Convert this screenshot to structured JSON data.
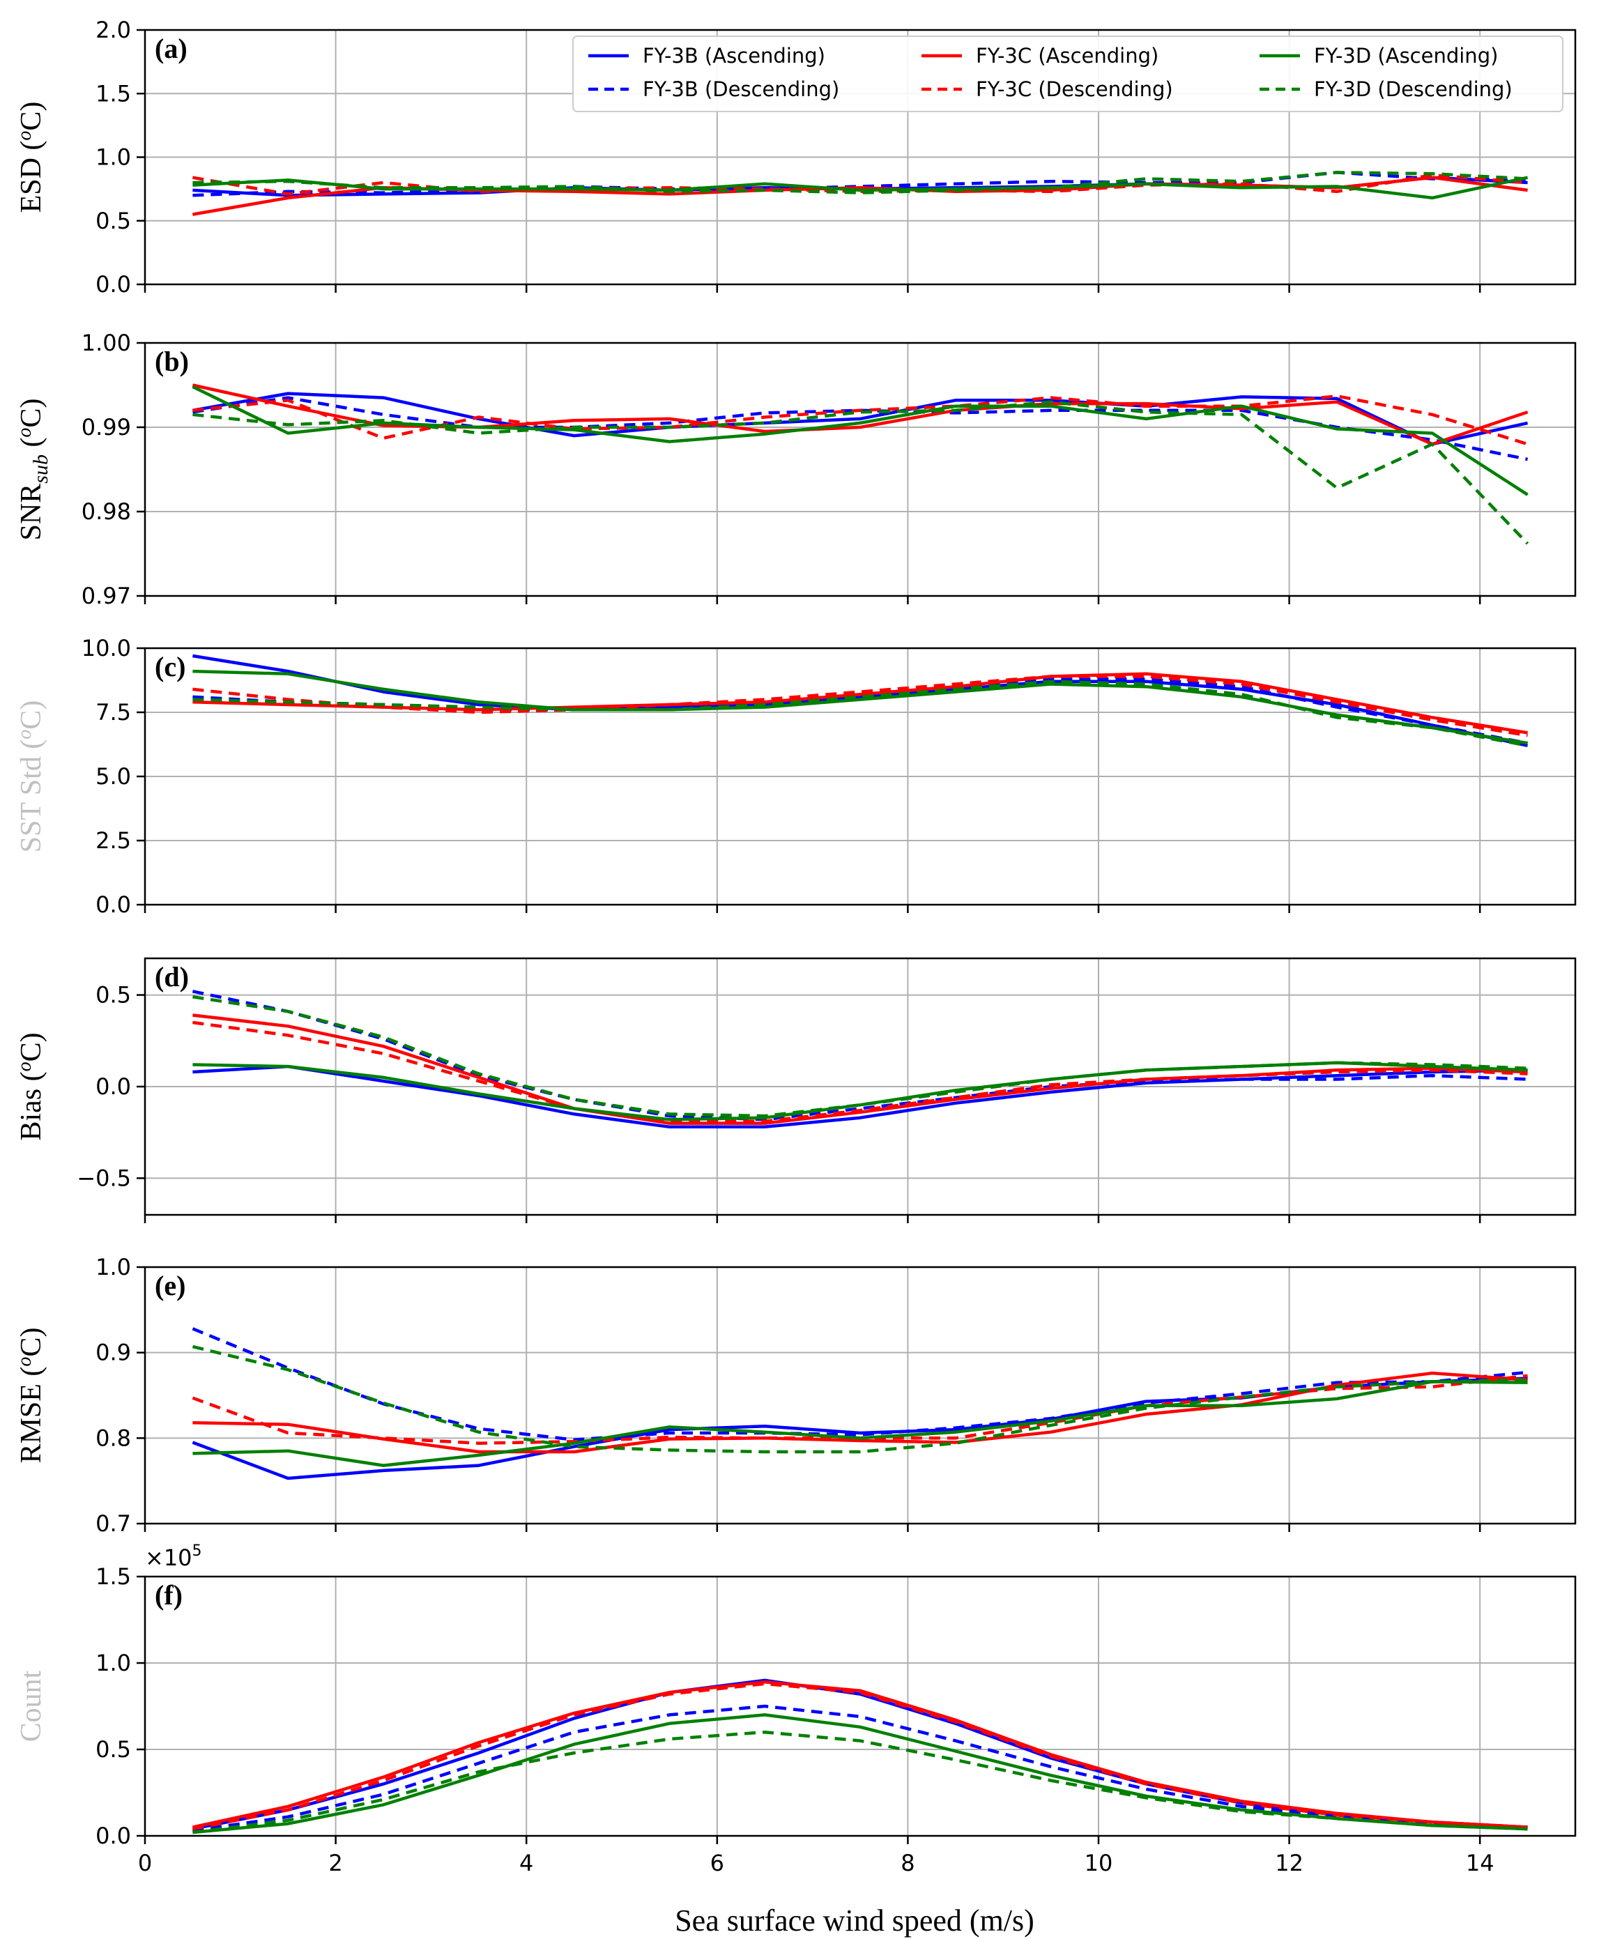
{
  "chart_data": {
    "type": "line",
    "xlabel": "Sea surface wind speed (m/s)",
    "xlim": [
      0,
      15
    ],
    "xticks": [
      0,
      2,
      4,
      6,
      8,
      10,
      12,
      14
    ],
    "x": [
      0.5,
      1.5,
      2.5,
      3.5,
      4.5,
      5.5,
      6.5,
      7.5,
      8.5,
      9.5,
      10.5,
      11.5,
      12.5,
      13.5,
      14.5
    ],
    "legend": {
      "placement": "top-right of panel (a)",
      "entries": [
        {
          "label": "FY-3B (Ascending)",
          "color": "#0000ff",
          "dash": "solid"
        },
        {
          "label": "FY-3B (Descending)",
          "color": "#0000ff",
          "dash": "dashed"
        },
        {
          "label": "FY-3C (Ascending)",
          "color": "#ff0000",
          "dash": "solid"
        },
        {
          "label": "FY-3C (Descending)",
          "color": "#ff0000",
          "dash": "dashed"
        },
        {
          "label": "FY-3D (Ascending)",
          "color": "#008000",
          "dash": "solid"
        },
        {
          "label": "FY-3D (Descending)",
          "color": "#008000",
          "dash": "dashed"
        }
      ]
    },
    "panels": [
      {
        "letter": "(a)",
        "ylabel": "ESD (°C)",
        "ylabel_color": "#000000",
        "ylim": [
          0.0,
          2.0
        ],
        "yticks": [
          0.0,
          0.5,
          1.0,
          1.5,
          2.0
        ],
        "ytick_labels": [
          "0.0",
          "0.5",
          "1.0",
          "1.5",
          "2.0"
        ],
        "series": [
          {
            "name": "FY-3B (Ascending)",
            "values": [
              0.74,
              0.7,
              0.71,
              0.72,
              0.76,
              0.74,
              0.76,
              0.75,
              0.76,
              0.77,
              0.79,
              0.78,
              0.76,
              0.84,
              0.8
            ]
          },
          {
            "name": "FY-3B (Descending)",
            "values": [
              0.7,
              0.73,
              0.72,
              0.74,
              0.77,
              0.75,
              0.75,
              0.77,
              0.79,
              0.81,
              0.8,
              0.8,
              0.88,
              0.83,
              0.82
            ]
          },
          {
            "name": "FY-3C (Ascending)",
            "values": [
              0.55,
              0.68,
              0.76,
              0.74,
              0.73,
              0.71,
              0.74,
              0.76,
              0.73,
              0.74,
              0.79,
              0.78,
              0.76,
              0.84,
              0.74
            ]
          },
          {
            "name": "FY-3C (Descending)",
            "values": [
              0.84,
              0.71,
              0.8,
              0.73,
              0.75,
              0.76,
              0.75,
              0.73,
              0.74,
              0.73,
              0.78,
              0.79,
              0.73,
              0.86,
              0.8
            ]
          },
          {
            "name": "FY-3D (Ascending)",
            "values": [
              0.78,
              0.82,
              0.75,
              0.75,
              0.75,
              0.74,
              0.79,
              0.74,
              0.75,
              0.76,
              0.79,
              0.76,
              0.77,
              0.68,
              0.84
            ]
          },
          {
            "name": "FY-3D (Descending)",
            "values": [
              0.8,
              0.81,
              0.76,
              0.76,
              0.77,
              0.73,
              0.74,
              0.72,
              0.74,
              0.76,
              0.83,
              0.81,
              0.88,
              0.87,
              0.83
            ]
          }
        ]
      },
      {
        "letter": "(b)",
        "ylabel": "SNRsub (°C)",
        "ylabel_color": "#000000",
        "ylim": [
          0.97,
          1.0
        ],
        "yticks": [
          0.97,
          0.98,
          0.99,
          1.0
        ],
        "ytick_labels": [
          "0.97",
          "0.98",
          "0.99",
          "1.00"
        ],
        "series": [
          {
            "name": "FY-3B (Ascending)",
            "values": [
              0.992,
              0.994,
              0.9935,
              0.991,
              0.989,
              0.99,
              0.9905,
              0.991,
              0.9932,
              0.9932,
              0.9925,
              0.9936,
              0.9934,
              0.988,
              0.9905
            ]
          },
          {
            "name": "FY-3B (Descending)",
            "values": [
              0.9918,
              0.9935,
              0.9915,
              0.99,
              0.99,
              0.9905,
              0.9917,
              0.992,
              0.9917,
              0.992,
              0.992,
              0.992,
              0.99,
              0.9885,
              0.9862
            ]
          },
          {
            "name": "FY-3C (Ascending)",
            "values": [
              0.995,
              0.9925,
              0.9902,
              0.99,
              0.9908,
              0.991,
              0.9895,
              0.99,
              0.992,
              0.9928,
              0.9928,
              0.9922,
              0.993,
              0.988,
              0.9918
            ]
          },
          {
            "name": "FY-3C (Descending)",
            "values": [
              0.992,
              0.9932,
              0.9887,
              0.9912,
              0.9898,
              0.99,
              0.9912,
              0.992,
              0.9925,
              0.9935,
              0.9925,
              0.9925,
              0.9937,
              0.9915,
              0.988
            ]
          },
          {
            "name": "FY-3D (Ascending)",
            "values": [
              0.9948,
              0.9893,
              0.9905,
              0.99,
              0.9897,
              0.9883,
              0.9892,
              0.9905,
              0.9925,
              0.9925,
              0.991,
              0.9925,
              0.9898,
              0.9893,
              0.982
            ]
          },
          {
            "name": "FY-3D (Descending)",
            "values": [
              0.9915,
              0.9903,
              0.9908,
              0.9893,
              0.99,
              0.99,
              0.9905,
              0.9918,
              0.992,
              0.993,
              0.9918,
              0.9915,
              0.9828,
              0.988,
              0.9762
            ]
          }
        ]
      },
      {
        "letter": "(c)",
        "ylabel": "SST Std (°C)",
        "ylabel_color": "#c0c0c0",
        "ylim": [
          0.0,
          10.0
        ],
        "yticks": [
          0.0,
          2.5,
          5.0,
          7.5,
          10.0
        ],
        "ytick_labels": [
          "0.0",
          "2.5",
          "5.0",
          "7.5",
          "10.0"
        ],
        "series": [
          {
            "name": "FY-3B (Ascending)",
            "values": [
              9.7,
              9.1,
              8.3,
              7.8,
              7.6,
              7.7,
              7.8,
              8.1,
              8.4,
              8.7,
              8.7,
              8.4,
              7.8,
              7.0,
              6.2
            ]
          },
          {
            "name": "FY-3B (Descending)",
            "values": [
              8.1,
              7.9,
              7.8,
              7.6,
              7.6,
              7.7,
              7.9,
              8.2,
              8.5,
              8.8,
              8.8,
              8.5,
              7.7,
              7.0,
              6.3
            ]
          },
          {
            "name": "FY-3C (Ascending)",
            "values": [
              7.9,
              7.8,
              7.7,
              7.6,
              7.7,
              7.8,
              7.9,
              8.2,
              8.5,
              8.9,
              9.0,
              8.7,
              8.0,
              7.3,
              6.7
            ]
          },
          {
            "name": "FY-3C (Descending)",
            "values": [
              8.4,
              8.0,
              7.7,
              7.5,
              7.6,
              7.8,
              8.0,
              8.3,
              8.6,
              8.9,
              8.9,
              8.6,
              7.9,
              7.2,
              6.6
            ]
          },
          {
            "name": "FY-3D (Ascending)",
            "values": [
              9.1,
              9.0,
              8.4,
              7.9,
              7.6,
              7.6,
              7.7,
              8.0,
              8.3,
              8.6,
              8.5,
              8.1,
              7.4,
              6.9,
              6.3
            ]
          },
          {
            "name": "FY-3D (Descending)",
            "values": [
              8.0,
              7.9,
              7.8,
              7.7,
              7.6,
              7.6,
              7.8,
              8.1,
              8.4,
              8.7,
              8.6,
              8.2,
              7.3,
              6.9,
              6.2
            ]
          }
        ]
      },
      {
        "letter": "(d)",
        "ylabel": "Bias (°C)",
        "ylabel_color": "#000000",
        "ylim": [
          -0.7,
          0.7
        ],
        "yticks": [
          -0.5,
          0.0,
          0.5
        ],
        "ytick_labels": [
          "−0.5",
          "0.0",
          "0.5"
        ],
        "series": [
          {
            "name": "FY-3B (Ascending)",
            "values": [
              0.08,
              0.11,
              0.03,
              -0.05,
              -0.15,
              -0.22,
              -0.22,
              -0.17,
              -0.09,
              -0.03,
              0.02,
              0.04,
              0.06,
              0.08,
              0.09
            ]
          },
          {
            "name": "FY-3B (Descending)",
            "values": [
              0.52,
              0.41,
              0.26,
              0.06,
              -0.07,
              -0.16,
              -0.18,
              -0.12,
              -0.06,
              0.0,
              0.03,
              0.04,
              0.04,
              0.06,
              0.04
            ]
          },
          {
            "name": "FY-3C (Ascending)",
            "values": [
              0.39,
              0.33,
              0.22,
              0.05,
              -0.12,
              -0.2,
              -0.2,
              -0.14,
              -0.07,
              -0.01,
              0.04,
              0.06,
              0.09,
              0.1,
              0.08
            ]
          },
          {
            "name": "FY-3C (Descending)",
            "values": [
              0.35,
              0.28,
              0.18,
              0.03,
              -0.12,
              -0.19,
              -0.19,
              -0.13,
              -0.06,
              0.01,
              0.04,
              0.06,
              0.08,
              0.09,
              0.07
            ]
          },
          {
            "name": "FY-3D (Ascending)",
            "values": [
              0.12,
              0.11,
              0.05,
              -0.04,
              -0.12,
              -0.18,
              -0.17,
              -0.1,
              -0.02,
              0.04,
              0.09,
              0.11,
              0.13,
              0.11,
              0.09
            ]
          },
          {
            "name": "FY-3D (Descending)",
            "values": [
              0.49,
              0.41,
              0.27,
              0.07,
              -0.07,
              -0.15,
              -0.16,
              -0.1,
              -0.03,
              0.04,
              0.09,
              0.11,
              0.13,
              0.12,
              0.1
            ]
          }
        ]
      },
      {
        "letter": "(e)",
        "ylabel": "RMSE (°C)",
        "ylabel_color": "#000000",
        "ylim": [
          0.7,
          1.0
        ],
        "yticks": [
          0.7,
          0.8,
          0.9,
          1.0
        ],
        "ytick_labels": [
          "0.7",
          "0.8",
          "0.9",
          "1.0"
        ],
        "series": [
          {
            "name": "FY-3B (Ascending)",
            "values": [
              0.795,
              0.753,
              0.762,
              0.768,
              0.79,
              0.81,
              0.814,
              0.806,
              0.81,
              0.822,
              0.843,
              0.847,
              0.86,
              0.866,
              0.87
            ]
          },
          {
            "name": "FY-3B (Descending)",
            "values": [
              0.928,
              0.882,
              0.84,
              0.811,
              0.798,
              0.806,
              0.806,
              0.804,
              0.812,
              0.823,
              0.841,
              0.852,
              0.865,
              0.866,
              0.877
            ]
          },
          {
            "name": "FY-3C (Ascending)",
            "values": [
              0.818,
              0.816,
              0.799,
              0.784,
              0.784,
              0.799,
              0.8,
              0.797,
              0.795,
              0.807,
              0.828,
              0.839,
              0.862,
              0.876,
              0.868
            ]
          },
          {
            "name": "FY-3C (Descending)",
            "values": [
              0.847,
              0.806,
              0.8,
              0.794,
              0.796,
              0.801,
              0.8,
              0.8,
              0.8,
              0.818,
              0.838,
              0.848,
              0.858,
              0.86,
              0.873
            ]
          },
          {
            "name": "FY-3D (Ascending)",
            "values": [
              0.782,
              0.785,
              0.768,
              0.78,
              0.794,
              0.813,
              0.807,
              0.8,
              0.807,
              0.82,
              0.838,
              0.838,
              0.846,
              0.866,
              0.865
            ]
          },
          {
            "name": "FY-3D (Descending)",
            "values": [
              0.907,
              0.88,
              0.841,
              0.807,
              0.79,
              0.786,
              0.784,
              0.784,
              0.794,
              0.815,
              0.835,
              0.848,
              0.86,
              0.866,
              0.868
            ]
          }
        ]
      },
      {
        "letter": "(f)",
        "ylabel": "Count",
        "ylabel_color": "#c0c0c0",
        "ylim": [
          0.0,
          1.5
        ],
        "yticks": [
          0.0,
          0.5,
          1.0,
          1.5
        ],
        "ytick_labels": [
          "0.0",
          "0.5",
          "1.0",
          "1.5"
        ],
        "multiplier_label": "×10",
        "multiplier_exponent": "5",
        "series": [
          {
            "name": "FY-3B (Ascending)",
            "values": [
              0.04,
              0.15,
              0.3,
              0.48,
              0.68,
              0.83,
              0.9,
              0.82,
              0.65,
              0.45,
              0.3,
              0.19,
              0.12,
              0.08,
              0.05
            ]
          },
          {
            "name": "FY-3B (Descending)",
            "values": [
              0.03,
              0.11,
              0.24,
              0.42,
              0.6,
              0.7,
              0.75,
              0.69,
              0.55,
              0.4,
              0.27,
              0.17,
              0.11,
              0.07,
              0.05
            ]
          },
          {
            "name": "FY-3C (Ascending)",
            "values": [
              0.05,
              0.17,
              0.34,
              0.54,
              0.71,
              0.83,
              0.89,
              0.84,
              0.67,
              0.47,
              0.31,
              0.2,
              0.13,
              0.08,
              0.05
            ]
          },
          {
            "name": "FY-3C (Descending)",
            "values": [
              0.04,
              0.15,
              0.32,
              0.52,
              0.7,
              0.82,
              0.88,
              0.83,
              0.66,
              0.46,
              0.3,
              0.19,
              0.12,
              0.08,
              0.05
            ]
          },
          {
            "name": "FY-3D (Ascending)",
            "values": [
              0.02,
              0.07,
              0.18,
              0.35,
              0.53,
              0.65,
              0.7,
              0.63,
              0.49,
              0.35,
              0.23,
              0.15,
              0.1,
              0.06,
              0.04
            ]
          },
          {
            "name": "FY-3D (Descending)",
            "values": [
              0.02,
              0.09,
              0.21,
              0.37,
              0.48,
              0.56,
              0.6,
              0.55,
              0.44,
              0.32,
              0.22,
              0.14,
              0.1,
              0.06,
              0.04
            ]
          }
        ]
      }
    ]
  }
}
